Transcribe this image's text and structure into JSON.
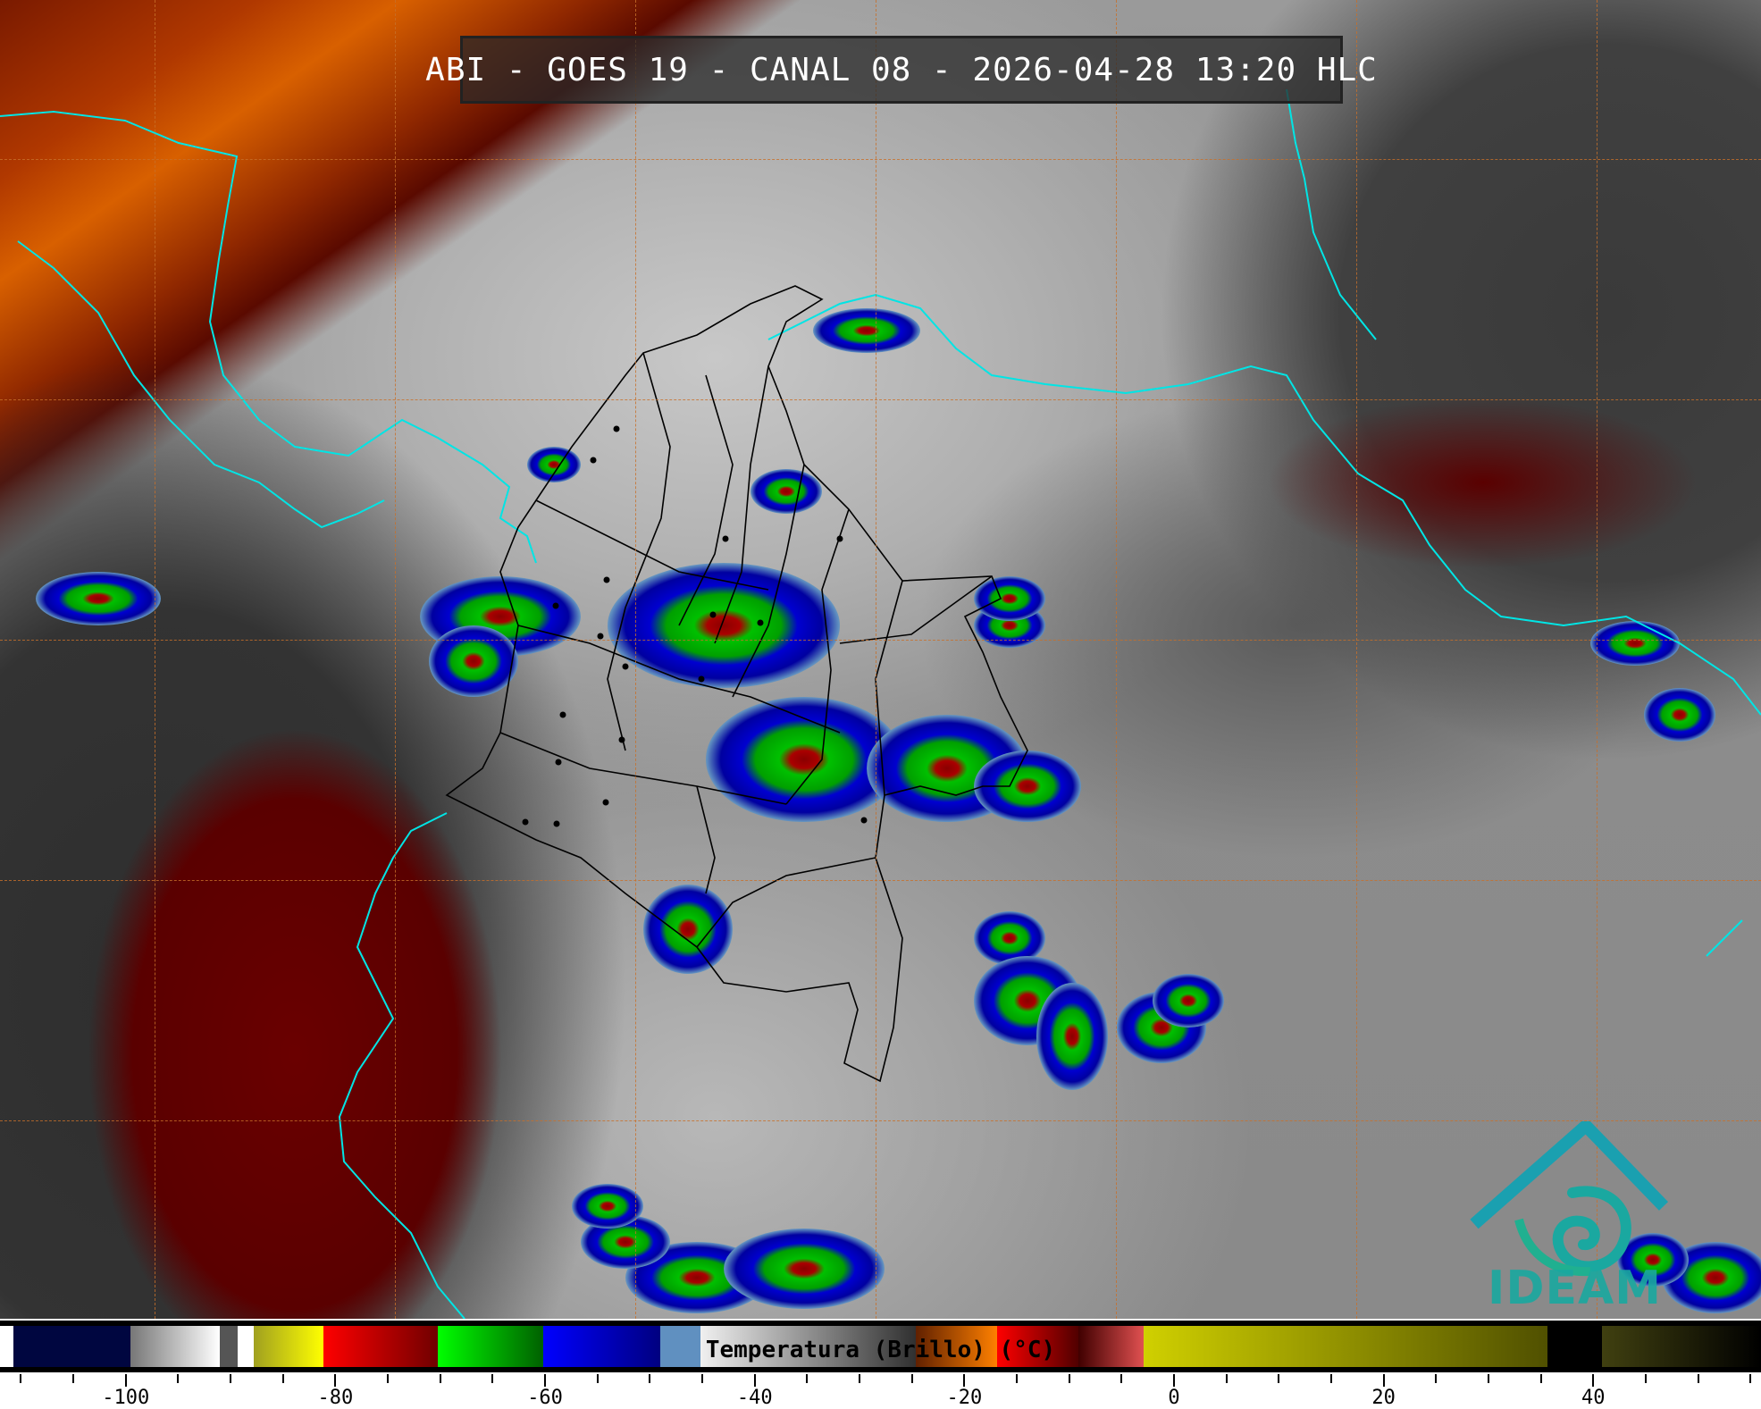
{
  "title": "ABI - GOES 19 - CANAL 08 - 2026-04-28 13:20 HLC",
  "logo": {
    "text": "IDEAM",
    "color": "#1aa8a0"
  },
  "colorbar": {
    "label": "Temperatura (Brillo) (°C)",
    "range": [
      -112,
      56
    ],
    "major_ticks": [
      -100,
      -80,
      -60,
      -40,
      -20,
      0,
      20,
      40
    ],
    "minor_tick_step": 5,
    "tick_labels": [
      "-100",
      "-80",
      "-60",
      "-40",
      "-20",
      "0",
      "20",
      "40"
    ]
  },
  "colors": {
    "coastline": "#00e5e5",
    "borders": "#000000",
    "gridlines": "#c8702a"
  }
}
